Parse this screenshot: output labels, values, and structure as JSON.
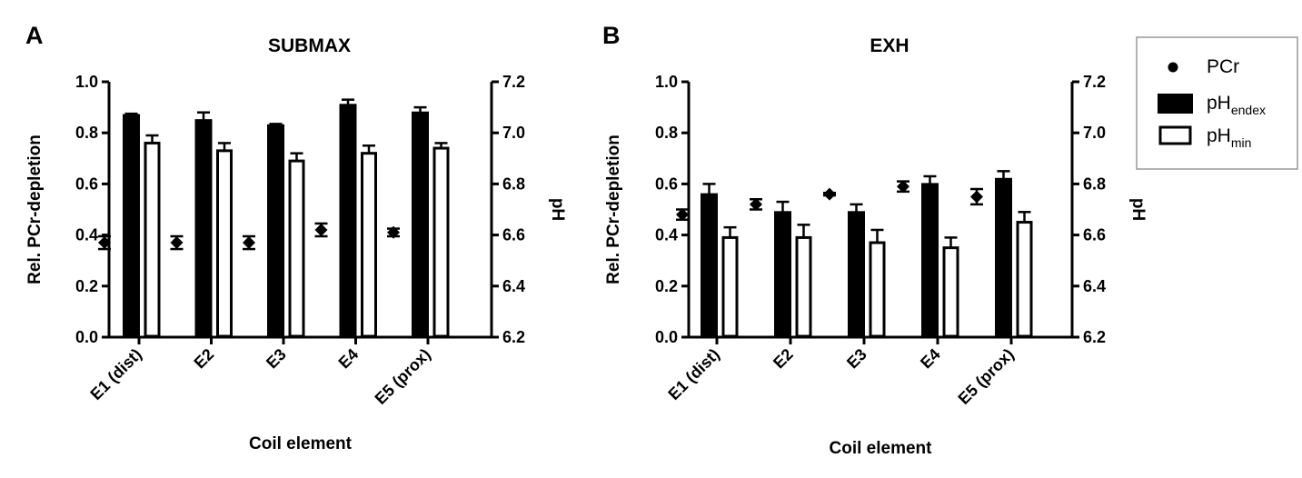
{
  "colors": {
    "bars_endex": "#000000",
    "bars_min": "#ffffff",
    "stroke": "#000000",
    "legend_border": "#999999"
  },
  "legend": {
    "items": [
      {
        "key": "pcr",
        "label": "PCr",
        "sub": "",
        "icon": "filled-circle-marker"
      },
      {
        "key": "endex",
        "label": "pH",
        "sub": "endex",
        "icon": "filled-bar-swatch"
      },
      {
        "key": "min",
        "label": "pH",
        "sub": "min",
        "icon": "open-bar-swatch"
      }
    ]
  },
  "chart_data": [
    {
      "panel": "A",
      "type": "bar",
      "title": "SUBMAX",
      "xlabel": "Coil element",
      "ylabel_left": "Rel. PCr-depletion",
      "ylabel_right": "pH",
      "categories": [
        "E1 (dist)",
        "E2",
        "E3",
        "E4",
        "E5 (prox)"
      ],
      "ylim_left": [
        0.0,
        1.0
      ],
      "ylim_right": [
        6.2,
        7.2
      ],
      "yticks_left": [
        "0.0",
        "0.2",
        "0.4",
        "0.6",
        "0.8",
        "1.0"
      ],
      "yticks_right": [
        "6.2",
        "6.4",
        "6.6",
        "6.8",
        "7.0",
        "7.2"
      ],
      "grid": false,
      "series": [
        {
          "name": "PCr",
          "kind": "point",
          "axis": "left",
          "values": [
            0.37,
            0.37,
            0.37,
            0.42,
            0.41
          ],
          "errors": [
            0.025,
            0.025,
            0.025,
            0.025,
            0.015
          ]
        },
        {
          "name": "pHendex",
          "kind": "bar",
          "axis": "right",
          "values": [
            7.07,
            7.05,
            7.03,
            7.11,
            7.08
          ],
          "errors": [
            0.005,
            0.03,
            0.005,
            0.02,
            0.02
          ]
        },
        {
          "name": "pHmin",
          "kind": "bar",
          "axis": "right",
          "values": [
            6.96,
            6.93,
            6.89,
            6.92,
            6.94
          ],
          "errors": [
            0.03,
            0.03,
            0.03,
            0.03,
            0.02
          ]
        }
      ]
    },
    {
      "panel": "B",
      "type": "bar",
      "title": "EXH",
      "xlabel": "Coil element",
      "ylabel_left": "Rel. PCr-depletion",
      "ylabel_right": "pH",
      "categories": [
        "E1 (dist)",
        "E2",
        "E3",
        "E4",
        "E5 (prox)"
      ],
      "ylim_left": [
        0.0,
        1.0
      ],
      "ylim_right": [
        6.2,
        7.2
      ],
      "yticks_left": [
        "0.0",
        "0.2",
        "0.4",
        "0.6",
        "0.8",
        "1.0"
      ],
      "yticks_right": [
        "6.2",
        "6.4",
        "6.6",
        "6.8",
        "7.0",
        "7.2"
      ],
      "grid": false,
      "series": [
        {
          "name": "PCr",
          "kind": "point",
          "axis": "left",
          "values": [
            0.48,
            0.52,
            0.56,
            0.59,
            0.55
          ],
          "errors": [
            0.02,
            0.02,
            0.005,
            0.02,
            0.03
          ]
        },
        {
          "name": "pHendex",
          "kind": "bar",
          "axis": "right",
          "values": [
            6.76,
            6.69,
            6.69,
            6.8,
            6.82
          ],
          "errors": [
            0.04,
            0.04,
            0.03,
            0.03,
            0.03
          ]
        },
        {
          "name": "pHmin",
          "kind": "bar",
          "axis": "right",
          "values": [
            6.59,
            6.59,
            6.57,
            6.55,
            6.65
          ],
          "errors": [
            0.04,
            0.05,
            0.05,
            0.04,
            0.04
          ]
        }
      ]
    }
  ]
}
